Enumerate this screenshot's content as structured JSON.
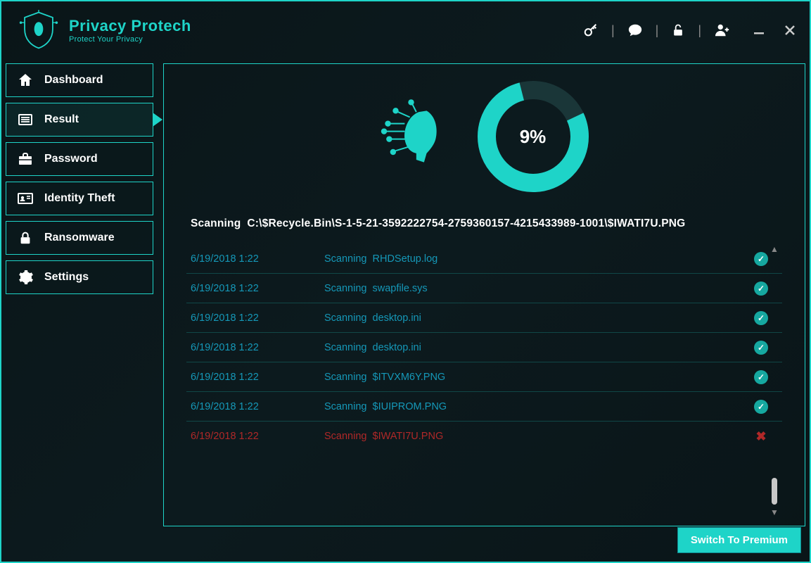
{
  "colors": {
    "accent": "#1ed4c8",
    "accent_dark": "#16a8a0",
    "bg": "#0a1518",
    "text": "#ffffff",
    "list_text": "#1598b8",
    "error": "#b02828",
    "border": "#1ed4c8"
  },
  "brand": {
    "title": "Privacy Protech",
    "tagline": "Protect Your Privacy"
  },
  "titlebar_icons": {
    "key": "key-icon",
    "chat": "chat-icon",
    "unlock": "unlock-icon",
    "add_user": "add-user-icon",
    "minimize": "minimize-icon",
    "close": "close-icon"
  },
  "sidebar": {
    "items": [
      {
        "icon": "home",
        "label": "Dashboard",
        "active": false
      },
      {
        "icon": "list",
        "label": "Result",
        "active": true
      },
      {
        "icon": "briefcase",
        "label": "Password",
        "active": false
      },
      {
        "icon": "id-card",
        "label": "Identity Theft",
        "active": false
      },
      {
        "icon": "lock",
        "label": "Ransomware",
        "active": false
      },
      {
        "icon": "gear",
        "label": "Settings",
        "active": false
      }
    ]
  },
  "scan": {
    "progress_percent": 9,
    "progress_label": "9%",
    "ring": {
      "size": 170,
      "stroke_width": 26,
      "track_color": "#1a3638",
      "fill_color": "#1ed4c8",
      "gap_start_deg": 90
    },
    "path_prefix": "Scanning",
    "path": "C:\\$Recycle.Bin\\S-1-5-21-3592222754-2759360157-4215433989-1001\\$IWATI7U.PNG",
    "rows": [
      {
        "time": "6/19/2018 1:22",
        "action": "Scanning",
        "file": "RHDSetup.log",
        "status": "ok"
      },
      {
        "time": "6/19/2018 1:22",
        "action": "Scanning",
        "file": "swapfile.sys",
        "status": "ok"
      },
      {
        "time": "6/19/2018 1:22",
        "action": "Scanning",
        "file": "desktop.ini",
        "status": "ok"
      },
      {
        "time": "6/19/2018 1:22",
        "action": "Scanning",
        "file": "desktop.ini",
        "status": "ok"
      },
      {
        "time": "6/19/2018 1:22",
        "action": "Scanning",
        "file": "$ITVXM6Y.PNG",
        "status": "ok"
      },
      {
        "time": "6/19/2018 1:22",
        "action": "Scanning",
        "file": "$IUIPROM.PNG",
        "status": "ok"
      },
      {
        "time": "6/19/2018 1:22",
        "action": "Scanning",
        "file": "$IWATI7U.PNG",
        "status": "error"
      }
    ]
  },
  "premium_button": "Switch To Premium"
}
